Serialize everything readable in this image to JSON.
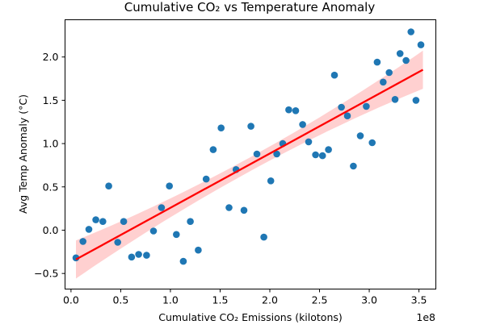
{
  "chart_data": {
    "type": "scatter",
    "title": "Cumulative CO₂ vs Temperature Anomaly",
    "xlabel": "Cumulative CO₂ Emissions (kilotons)",
    "ylabel": "Avg Temp Anomaly (°C)",
    "x_offset_label": "1e8",
    "x_tick_labels": [
      "0.0",
      "0.5",
      "1.0",
      "1.5",
      "2.0",
      "2.5",
      "3.0",
      "3.5"
    ],
    "y_tick_labels": [
      "−0.5",
      "0.0",
      "0.5",
      "1.0",
      "1.5",
      "2.0"
    ],
    "xlim": [
      -6000000,
      367000000
    ],
    "ylim": [
      -0.68,
      2.43
    ],
    "grid": false,
    "colors": {
      "points": "#1f77b4",
      "regression_line": "#ff0000",
      "confidence_band": "#ffc0c0"
    },
    "points": [
      {
        "x": 5000000,
        "y": -0.32
      },
      {
        "x": 12000000,
        "y": -0.13
      },
      {
        "x": 18000000,
        "y": 0.01
      },
      {
        "x": 25000000,
        "y": 0.12
      },
      {
        "x": 32000000,
        "y": 0.1
      },
      {
        "x": 38000000,
        "y": 0.51
      },
      {
        "x": 47000000,
        "y": -0.14
      },
      {
        "x": 53000000,
        "y": 0.1
      },
      {
        "x": 61000000,
        "y": -0.31
      },
      {
        "x": 68000000,
        "y": -0.28
      },
      {
        "x": 76000000,
        "y": -0.29
      },
      {
        "x": 83000000,
        "y": -0.01
      },
      {
        "x": 91000000,
        "y": 0.26
      },
      {
        "x": 99000000,
        "y": 0.51
      },
      {
        "x": 106000000,
        "y": -0.05
      },
      {
        "x": 113000000,
        "y": -0.36
      },
      {
        "x": 120000000,
        "y": 0.1
      },
      {
        "x": 128000000,
        "y": -0.23
      },
      {
        "x": 136000000,
        "y": 0.59
      },
      {
        "x": 143000000,
        "y": 0.93
      },
      {
        "x": 151000000,
        "y": 1.18
      },
      {
        "x": 159000000,
        "y": 0.26
      },
      {
        "x": 166000000,
        "y": 0.7
      },
      {
        "x": 174000000,
        "y": 0.23
      },
      {
        "x": 181000000,
        "y": 1.2
      },
      {
        "x": 187000000,
        "y": 0.88
      },
      {
        "x": 194000000,
        "y": -0.08
      },
      {
        "x": 201000000,
        "y": 0.57
      },
      {
        "x": 207000000,
        "y": 0.88
      },
      {
        "x": 213000000,
        "y": 1.0
      },
      {
        "x": 219000000,
        "y": 1.39
      },
      {
        "x": 226000000,
        "y": 1.38
      },
      {
        "x": 233000000,
        "y": 1.22
      },
      {
        "x": 239000000,
        "y": 1.02
      },
      {
        "x": 246000000,
        "y": 0.87
      },
      {
        "x": 253000000,
        "y": 0.86
      },
      {
        "x": 259000000,
        "y": 0.93
      },
      {
        "x": 265000000,
        "y": 1.79
      },
      {
        "x": 272000000,
        "y": 1.42
      },
      {
        "x": 278000000,
        "y": 1.32
      },
      {
        "x": 284000000,
        "y": 0.74
      },
      {
        "x": 291000000,
        "y": 1.09
      },
      {
        "x": 297000000,
        "y": 1.43
      },
      {
        "x": 303000000,
        "y": 1.01
      },
      {
        "x": 308000000,
        "y": 1.94
      },
      {
        "x": 314000000,
        "y": 1.71
      },
      {
        "x": 320000000,
        "y": 1.82
      },
      {
        "x": 326000000,
        "y": 1.51
      },
      {
        "x": 331000000,
        "y": 2.04
      },
      {
        "x": 337000000,
        "y": 1.96
      },
      {
        "x": 342000000,
        "y": 2.29
      },
      {
        "x": 347000000,
        "y": 1.5
      },
      {
        "x": 352000000,
        "y": 2.14
      }
    ],
    "regression": {
      "x_range": [
        5000000,
        354000000
      ],
      "slope": 6.28e-09,
      "intercept": -0.37,
      "ci_halfwidth_at_x_ends": 0.22,
      "ci_halfwidth_at_center": 0.08
    }
  }
}
